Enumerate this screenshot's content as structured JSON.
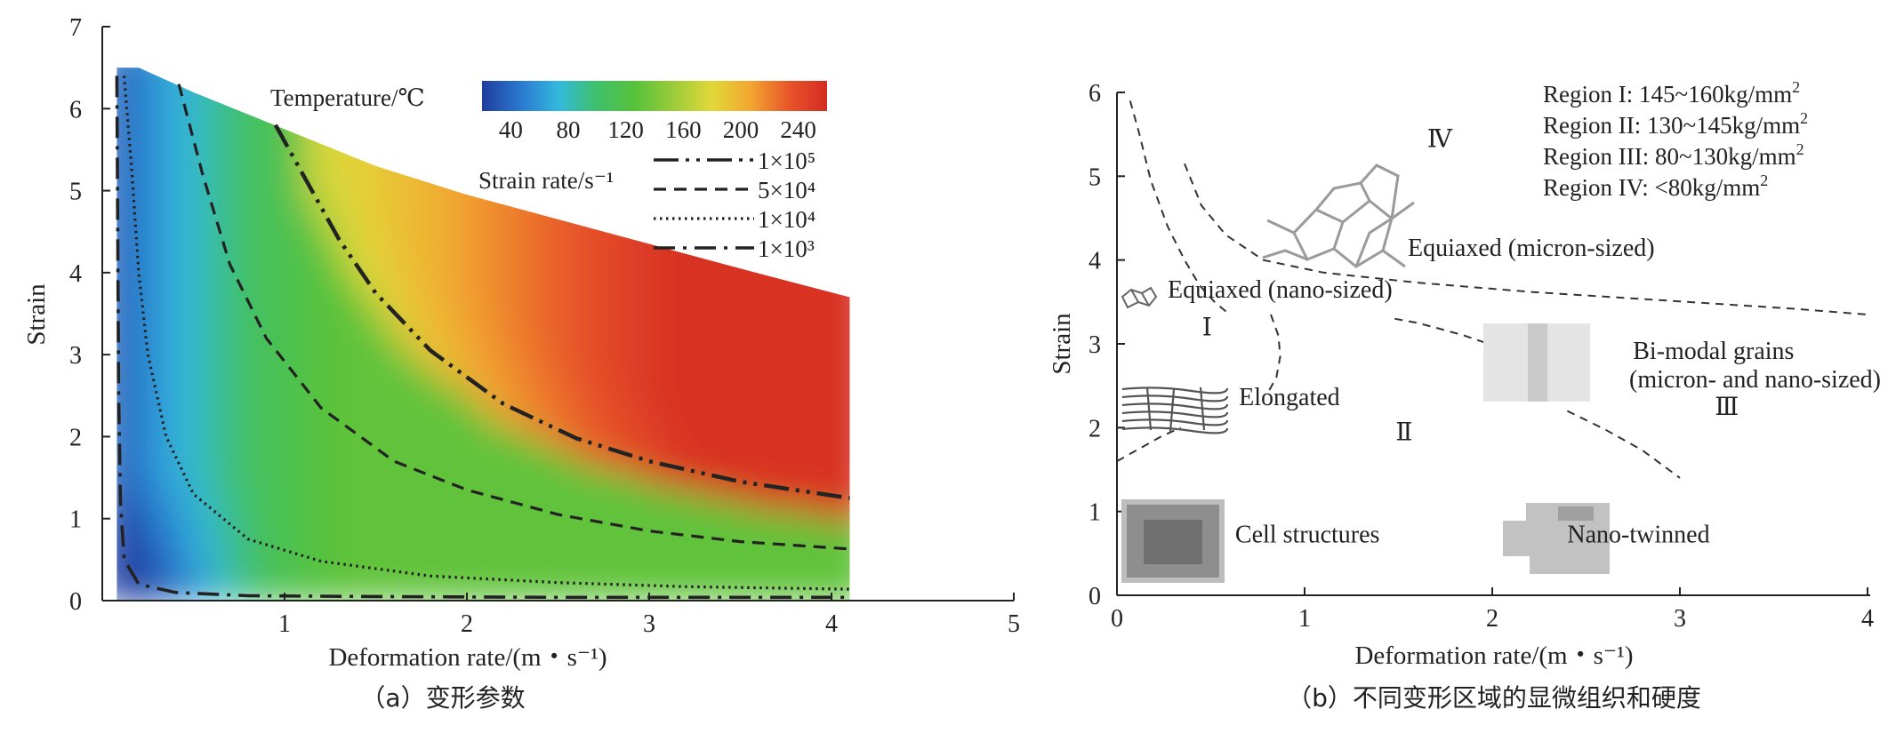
{
  "chart_data": [
    {
      "type": "heatmap",
      "caption": "（a）变形参数",
      "xlabel": "Deformation rate/(m・s⁻¹)",
      "ylabel": "Strain",
      "xlim": [
        0,
        5
      ],
      "ylim": [
        0,
        7
      ],
      "xticks": [
        "1",
        "2",
        "3",
        "4",
        "5"
      ],
      "yticks": [
        "0",
        "1",
        "2",
        "3",
        "4",
        "5",
        "6",
        "7"
      ],
      "colorbar": {
        "title": "Temperature/℃",
        "ticks": [
          "40",
          "80",
          "120",
          "160",
          "200",
          "240"
        ],
        "range": [
          20,
          260
        ],
        "colors": [
          "#1f3d9e",
          "#2a78cf",
          "#33b9dd",
          "#3fc06a",
          "#57c23a",
          "#9ccc3a",
          "#e2d83a",
          "#f2a630",
          "#e8562a",
          "#d42a22"
        ]
      },
      "domain_boundary": {
        "x": [
          0.08,
          0.2,
          0.5,
          1.0,
          1.5,
          2.0,
          2.5,
          3.0,
          3.5,
          4.1
        ],
        "y": [
          6.5,
          6.5,
          6.2,
          5.75,
          5.3,
          4.95,
          4.65,
          4.35,
          4.05,
          3.7
        ]
      },
      "legend_title": "Strain rate/s⁻¹",
      "series": [
        {
          "name": "1×10⁵",
          "style": "dash-dot-dot",
          "x": [
            0.95,
            1.1,
            1.3,
            1.5,
            1.8,
            2.2,
            2.6,
            3.0,
            3.5,
            4.1
          ],
          "y": [
            5.8,
            5.2,
            4.4,
            3.75,
            3.05,
            2.4,
            1.98,
            1.7,
            1.45,
            1.25
          ]
        },
        {
          "name": "5×10⁴",
          "style": "dashed",
          "x": [
            0.42,
            0.55,
            0.7,
            0.9,
            1.2,
            1.6,
            2.0,
            2.5,
            3.0,
            3.5,
            4.1
          ],
          "y": [
            6.3,
            5.2,
            4.1,
            3.2,
            2.35,
            1.7,
            1.35,
            1.05,
            0.85,
            0.72,
            0.63
          ]
        },
        {
          "name": "1×10⁴",
          "style": "dotted",
          "x": [
            0.12,
            0.16,
            0.2,
            0.25,
            0.35,
            0.5,
            0.8,
            1.2,
            1.8,
            2.5,
            3.2,
            4.1
          ],
          "y": [
            6.4,
            5.3,
            4.0,
            3.0,
            2.0,
            1.3,
            0.75,
            0.48,
            0.3,
            0.22,
            0.17,
            0.14
          ]
        },
        {
          "name": "1×10³",
          "style": "dash-dot",
          "x": [
            0.08,
            0.085,
            0.09,
            0.1,
            0.12,
            0.2,
            0.4,
            0.8,
            1.5,
            2.5,
            4.1
          ],
          "y": [
            6.4,
            4.5,
            2.5,
            1.2,
            0.5,
            0.2,
            0.1,
            0.06,
            0.05,
            0.04,
            0.04
          ]
        }
      ]
    },
    {
      "type": "scatter",
      "caption": "（b）不同变形区域的显微组织和硬度",
      "xlabel": "Deformation rate/(m・s⁻¹)",
      "ylabel": "Strain",
      "xlim": [
        0,
        4
      ],
      "ylim": [
        0,
        6
      ],
      "xticks": [
        "0",
        "1",
        "2",
        "3",
        "4"
      ],
      "yticks": [
        "0",
        "1",
        "2",
        "3",
        "4",
        "5",
        "6"
      ],
      "region_legend": [
        {
          "prefix": "Region I: 145~160kg/mm",
          "sup": "2"
        },
        {
          "prefix": "Region II: 130~145kg/mm",
          "sup": "2"
        },
        {
          "prefix": "Region III: 80~130kg/mm",
          "sup": "2"
        },
        {
          "prefix": "Region IV: <80kg/mm",
          "sup": "2"
        }
      ],
      "region_labels": [
        {
          "text": "Ⅰ",
          "x": 0.48,
          "y": 3.1
        },
        {
          "text": "Ⅱ",
          "x": 1.53,
          "y": 1.85
        },
        {
          "text": "Ⅲ",
          "x": 3.25,
          "y": 2.15
        },
        {
          "text": "Ⅳ",
          "x": 1.72,
          "y": 5.35
        }
      ],
      "annotations": [
        {
          "text": "Equiaxed (micron-sized)",
          "x": 1.55,
          "y": 4.05
        },
        {
          "text": "Equiaxed (nano-sized)",
          "x": 0.27,
          "y": 3.55
        },
        {
          "text": "Elongated",
          "x": 0.65,
          "y": 2.27
        },
        {
          "text": "Bi-modal grains",
          "x": 2.75,
          "y": 2.82
        },
        {
          "text": "(micron- and nano-sized)",
          "x": 2.73,
          "y": 2.48
        },
        {
          "text": "Cell structures",
          "x": 0.63,
          "y": 0.63
        },
        {
          "text": "Nano-twinned",
          "x": 2.4,
          "y": 0.63
        }
      ],
      "boundaries": [
        {
          "x": [
            0.07,
            0.12,
            0.18,
            0.27,
            0.36,
            0.44,
            0.52,
            0.6
          ],
          "y": [
            5.9,
            5.5,
            4.95,
            4.4,
            4.0,
            3.7,
            3.5,
            3.35
          ]
        },
        {
          "x": [
            0.36,
            0.45,
            0.58,
            0.78,
            1.1,
            1.6,
            2.2,
            2.9,
            3.6,
            4.0
          ],
          "y": [
            5.15,
            4.65,
            4.3,
            4.0,
            3.85,
            3.73,
            3.62,
            3.52,
            3.42,
            3.35
          ]
        },
        {
          "x": [
            0.82,
            0.86,
            0.87,
            0.85,
            0.8
          ],
          "y": [
            3.35,
            3.1,
            2.85,
            2.6,
            2.4
          ]
        },
        {
          "x": [
            0.0,
            0.12,
            0.24,
            0.34
          ],
          "y": [
            1.6,
            1.75,
            1.9,
            2.0
          ]
        },
        {
          "x": [
            1.48,
            1.6,
            1.72,
            1.85,
            1.98
          ],
          "y": [
            3.3,
            3.25,
            3.18,
            3.1,
            3.0
          ]
        },
        {
          "x": [
            2.4,
            2.6,
            2.8,
            3.0
          ],
          "y": [
            2.2,
            1.98,
            1.73,
            1.4
          ]
        }
      ]
    }
  ]
}
